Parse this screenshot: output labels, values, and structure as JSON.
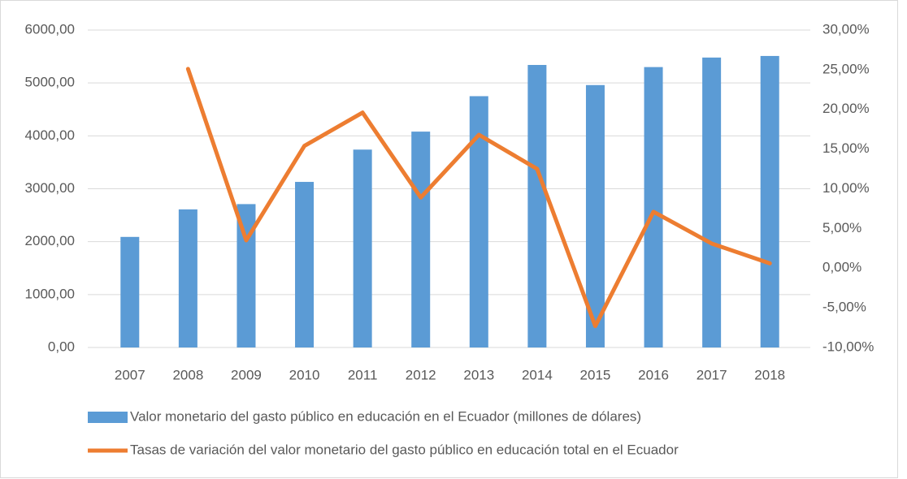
{
  "chart_data": {
    "type": "bar_line",
    "categories": [
      "2007",
      "2008",
      "2009",
      "2010",
      "2011",
      "2012",
      "2013",
      "2014",
      "2015",
      "2016",
      "2017",
      "2018"
    ],
    "series": [
      {
        "name": "Valor monetario del gasto público en educación en el Ecuador (millones de dólares)",
        "type": "bar",
        "color": "#5b9bd5",
        "values": [
          2090,
          2610,
          2710,
          3130,
          3740,
          4080,
          4750,
          5340,
          4960,
          5300,
          5480,
          5510
        ]
      },
      {
        "name": "Tasas de variación del valor monetario del gasto público en educación total en el Ecuador",
        "type": "line",
        "axis": "y2",
        "color": "#ed7d31",
        "values": [
          null,
          25.1,
          3.5,
          15.4,
          19.6,
          8.9,
          16.8,
          12.5,
          -7.3,
          7.1,
          3.1,
          0.6
        ]
      }
    ],
    "ylim": [
      0,
      6000
    ],
    "yticks": [
      {
        "value": 0,
        "label": "0,00"
      },
      {
        "value": 1000,
        "label": "1000,00"
      },
      {
        "value": 2000,
        "label": "2000,00"
      },
      {
        "value": 3000,
        "label": "3000,00"
      },
      {
        "value": 4000,
        "label": "4000,00"
      },
      {
        "value": 5000,
        "label": "5000,00"
      },
      {
        "value": 6000,
        "label": "6000,00"
      }
    ],
    "y2lim": [
      -10,
      30
    ],
    "y2ticks": [
      {
        "value": -10,
        "label": "-10,00%"
      },
      {
        "value": -5,
        "label": "-5,00%"
      },
      {
        "value": 0,
        "label": "0,00%"
      },
      {
        "value": 5,
        "label": "5,00%"
      },
      {
        "value": 10,
        "label": "10,00%"
      },
      {
        "value": 15,
        "label": "15,00%"
      },
      {
        "value": 20,
        "label": "20,00%"
      },
      {
        "value": 25,
        "label": "25,00%"
      },
      {
        "value": 30,
        "label": "30,00%"
      }
    ],
    "grid": true,
    "legend": "bottom"
  }
}
